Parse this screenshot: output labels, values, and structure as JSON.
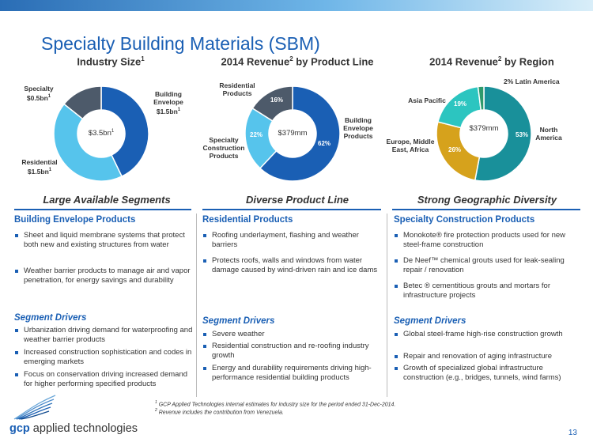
{
  "title": "Specialty Building Materials (SBM)",
  "colors": {
    "accent": "#1a5fb4",
    "light_blue": "#56c4ec",
    "slate": "#4d5a6a",
    "teal": "#2cc5c0",
    "gold": "#d6a21c",
    "green": "#2f9a6c"
  },
  "charts": {
    "industry": {
      "heading": "Industry Size",
      "heading_sup": "1",
      "center": "$3.5bn",
      "center_sup": "1",
      "labels": {
        "building": {
          "line1": "Building",
          "line2": "Envelope",
          "line3": "$1.5bn",
          "sup": "1"
        },
        "residential": {
          "line1": "Residential",
          "line2": "$1.5bn",
          "sup": "1"
        },
        "specialty": {
          "line1": "Specialty",
          "line2": "$0.5bn",
          "sup": "1"
        }
      }
    },
    "product": {
      "heading_a": "2014 Revenue",
      "heading_sup": "2",
      "heading_b": " by Product Line",
      "center": "$379mm",
      "labels": {
        "building": {
          "line1": "Building",
          "line2": "Envelope",
          "line3": "Products"
        },
        "residential": {
          "line1": "Residential",
          "line2": "Products"
        },
        "specialty": {
          "line1": "Specialty",
          "line2": "Construction",
          "line3": "Products"
        }
      },
      "pcts": {
        "building": "62%",
        "specialty": "22%",
        "residential": "16%"
      }
    },
    "region": {
      "heading_a": "2014 Revenue",
      "heading_sup": "2",
      "heading_b": " by Region",
      "center": "$379mm",
      "labels": {
        "latin": "Latin America",
        "asia": "Asia Pacific",
        "europe": {
          "line1": "Europe, Middle",
          "line2": "East, Africa"
        },
        "north": {
          "line1": "North",
          "line2": "America"
        }
      },
      "pcts": {
        "north": "53%",
        "europe": "26%",
        "asia": "19%",
        "latin": "2%"
      }
    }
  },
  "chart_data": [
    {
      "type": "pie",
      "title": "Industry Size",
      "categories": [
        "Building Envelope",
        "Residential",
        "Specialty"
      ],
      "values": [
        1.5,
        1.5,
        0.5
      ],
      "unit": "$bn",
      "total": "$3.5bn"
    },
    {
      "type": "pie",
      "title": "2014 Revenue by Product Line",
      "categories": [
        "Building Envelope Products",
        "Specialty Construction Products",
        "Residential Products"
      ],
      "values": [
        62,
        22,
        16
      ],
      "unit": "%",
      "total": "$379mm"
    },
    {
      "type": "pie",
      "title": "2014 Revenue by Region",
      "categories": [
        "North America",
        "Europe, Middle East, Africa",
        "Asia Pacific",
        "Latin America"
      ],
      "values": [
        53,
        26,
        19,
        2
      ],
      "unit": "%",
      "total": "$379mm"
    }
  ],
  "subheads": [
    "Large Available Segments",
    "Diverse Product Line",
    "Strong Geographic Diversity"
  ],
  "columns": [
    {
      "heading": "Building Envelope Products",
      "items": [
        "Sheet and liquid membrane systems that protect both new and existing structures from water",
        "Weather barrier products to manage air and vapor penetration, for energy savings and durability"
      ],
      "drivers_heading": "Segment Drivers",
      "drivers": [
        "Urbanization driving demand for waterproofing and weather barrier products",
        "Increased construction sophistication and codes in emerging markets",
        "Focus on conservation driving increased demand for higher performing specified products"
      ]
    },
    {
      "heading": "Residential Products",
      "items": [
        "Roofing underlayment, flashing and weather barriers",
        "Protects roofs, walls and windows from water damage caused by wind-driven rain and ice dams"
      ],
      "drivers_heading": "Segment Drivers",
      "drivers": [
        "Severe weather",
        "Residential construction and re-roofing industry growth",
        "Energy and durability requirements driving high-performance residential building products"
      ]
    },
    {
      "heading": "Specialty Construction Products",
      "items": [
        "Monokote® fire protection products used for new steel-frame construction",
        "De Neef™ chemical grouts used for leak-sealing repair / renovation",
        "Betec ® cementitious grouts and mortars for infrastructure projects"
      ],
      "drivers_heading": "Segment Drivers",
      "drivers": [
        "Global steel-frame high-rise construction growth",
        "Repair and renovation of aging infrastructure",
        "Growth of specialized global infrastructure construction (e.g., bridges, tunnels, wind farms)"
      ]
    }
  ],
  "footnotes": {
    "f1_sup": "1",
    "f1": " GCP Applied Technologies internal estimates for industry size for the period ended 31-Dec-2014.",
    "f2_sup": "2",
    "f2": " Revenue includes the contribution from Venezuela."
  },
  "brand": {
    "gcp": "gcp",
    "rest": " applied technologies"
  },
  "page_number": "13"
}
